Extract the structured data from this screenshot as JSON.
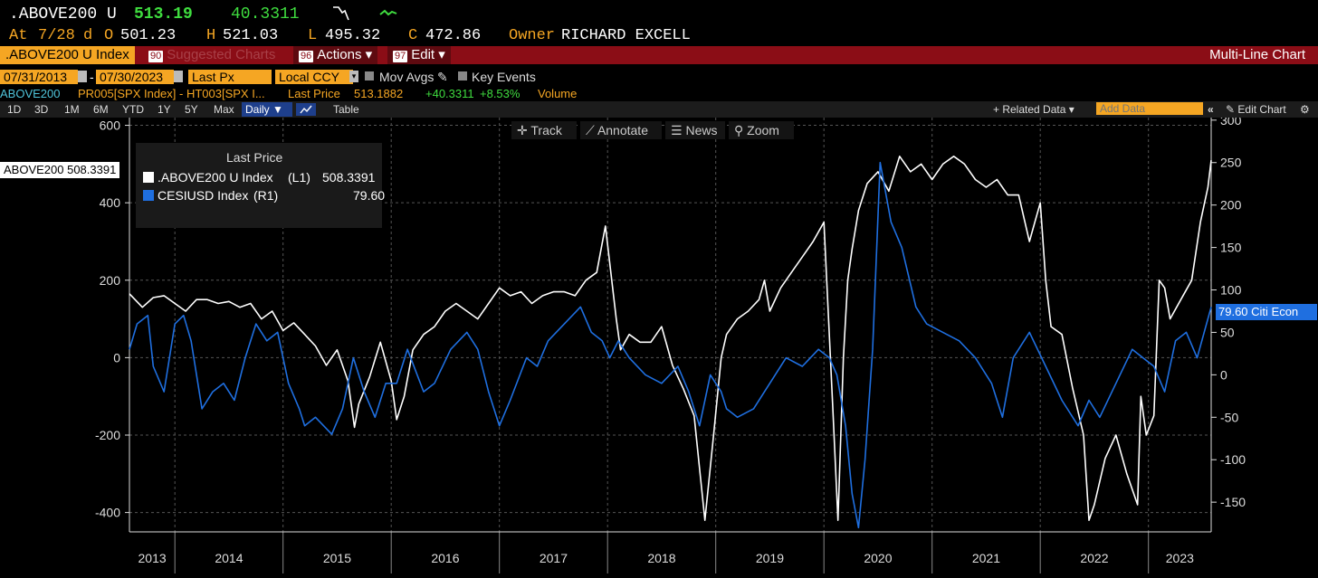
{
  "header": {
    "ticker": ".ABOVE200 U",
    "last": "513.19",
    "change": "40.3311",
    "at_label": "At",
    "date": "7/28",
    "d_label": "d",
    "o_label": "O",
    "open": "501.23",
    "h_label": "H",
    "high": "521.03",
    "l_label": "L",
    "low": "495.32",
    "c_label": "C",
    "close": "472.86",
    "owner_label": "Owner",
    "owner": "RICHARD EXCELL"
  },
  "menu": {
    "index_label": ".ABOVE200 U Index",
    "suggested_num": "90",
    "suggested_label": "Suggested Charts",
    "actions_num": "96",
    "actions_label": "Actions",
    "edit_num": "97",
    "edit_label": "Edit",
    "title": "Multi-Line Chart"
  },
  "controls": {
    "start_date": "07/31/2013",
    "end_date": "07/30/2023",
    "field": "Last Px",
    "currency": "Local CCY",
    "mov_avgs": "Mov Avgs",
    "key_events": "Key Events"
  },
  "info_line": {
    "name": "ABOVE200",
    "studies": "PR005[SPX Index] - HT003[SPX I...",
    "last_price_label": "Last Price",
    "last_price": "513.1882",
    "change": "+40.3311",
    "change_pct": "+8.53%",
    "volume": "Volume"
  },
  "toolbar": {
    "periods": [
      "1D",
      "3D",
      "1M",
      "6M",
      "YTD",
      "1Y",
      "5Y",
      "Max"
    ],
    "frequency": "Daily",
    "table": "Table",
    "related_data": "+ Related Data",
    "add_data_placeholder": "Add Data",
    "edit_chart": "Edit Chart"
  },
  "chart_tools": {
    "track": "Track",
    "annotate": "Annotate",
    "news": "News",
    "zoom": "Zoom"
  },
  "colors": {
    "background": "#000000",
    "series1": "#ffffff",
    "series2": "#1f6fe0",
    "amber": "#f5a623",
    "green": "#3fdc3f",
    "menu_red": "#8b0d16"
  },
  "chart_data": {
    "type": "line",
    "legend_title": "Last Price",
    "left_tag": "ABOVE200 508.3391",
    "right_tag": "79.60 Citi Econ",
    "y_left": {
      "ticks": [
        -400,
        -200,
        0,
        200,
        400,
        600
      ],
      "range": [
        -450,
        620
      ]
    },
    "y_right": {
      "ticks": [
        -150,
        -100,
        -50,
        0,
        50,
        100,
        150,
        200,
        250,
        300
      ],
      "range": [
        -185,
        303
      ]
    },
    "x_ticks": [
      "2013",
      "2014",
      "2015",
      "2016",
      "2017",
      "2018",
      "2019",
      "2020",
      "2021",
      "2022",
      "2023"
    ],
    "x_range": [
      2013.58,
      2023.58
    ],
    "grid": true,
    "series": [
      {
        "name": ".ABOVE200 U Index",
        "axis_label": "(L1)",
        "value_label": "508.3391",
        "axis": "left",
        "x": [
          2013.58,
          2013.7,
          2013.8,
          2013.9,
          2014.0,
          2014.1,
          2014.2,
          2014.3,
          2014.4,
          2014.5,
          2014.6,
          2014.7,
          2014.8,
          2014.9,
          2015.0,
          2015.1,
          2015.2,
          2015.3,
          2015.4,
          2015.5,
          2015.6,
          2015.66,
          2015.7,
          2015.8,
          2015.9,
          2016.0,
          2016.05,
          2016.12,
          2016.2,
          2016.3,
          2016.4,
          2016.5,
          2016.6,
          2016.7,
          2016.8,
          2016.9,
          2017.0,
          2017.1,
          2017.2,
          2017.3,
          2017.4,
          2017.5,
          2017.6,
          2017.7,
          2017.8,
          2017.9,
          2017.98,
          2018.08,
          2018.12,
          2018.2,
          2018.3,
          2018.4,
          2018.5,
          2018.6,
          2018.7,
          2018.8,
          2018.9,
          2018.98,
          2019.05,
          2019.1,
          2019.2,
          2019.3,
          2019.4,
          2019.45,
          2019.5,
          2019.6,
          2019.7,
          2019.8,
          2019.9,
          2020.0,
          2020.08,
          2020.13,
          2020.18,
          2020.22,
          2020.26,
          2020.32,
          2020.4,
          2020.5,
          2020.6,
          2020.7,
          2020.8,
          2020.9,
          2021.0,
          2021.1,
          2021.2,
          2021.3,
          2021.4,
          2021.5,
          2021.6,
          2021.7,
          2021.8,
          2021.9,
          2022.0,
          2022.05,
          2022.1,
          2022.2,
          2022.3,
          2022.4,
          2022.45,
          2022.5,
          2022.6,
          2022.7,
          2022.8,
          2022.9,
          2022.93,
          2022.98,
          2023.05,
          2023.1,
          2023.15,
          2023.2,
          2023.3,
          2023.4,
          2023.48,
          2023.55,
          2023.58
        ],
        "y": [
          165,
          130,
          155,
          160,
          140,
          120,
          150,
          150,
          140,
          145,
          130,
          140,
          100,
          120,
          70,
          90,
          60,
          30,
          -20,
          20,
          -60,
          -180,
          -120,
          -50,
          40,
          -60,
          -160,
          -100,
          20,
          60,
          80,
          120,
          140,
          120,
          100,
          140,
          180,
          160,
          170,
          140,
          160,
          170,
          170,
          160,
          200,
          220,
          340,
          100,
          20,
          60,
          40,
          40,
          80,
          -20,
          -80,
          -150,
          -420,
          -200,
          0,
          60,
          100,
          120,
          150,
          200,
          120,
          180,
          220,
          260,
          300,
          350,
          -120,
          -420,
          0,
          200,
          280,
          380,
          450,
          480,
          430,
          520,
          480,
          500,
          460,
          500,
          520,
          500,
          460,
          440,
          460,
          420,
          420,
          300,
          400,
          200,
          80,
          60,
          -80,
          -200,
          -420,
          -380,
          -260,
          -200,
          -300,
          -380,
          -100,
          -200,
          -150,
          200,
          180,
          100,
          150,
          200,
          350,
          440,
          510
        ]
      },
      {
        "name": "CESIUSD Index",
        "axis_label": "(R1)",
        "value_label": "79.60",
        "axis": "right",
        "x": [
          2013.58,
          2013.65,
          2013.75,
          2013.8,
          2013.9,
          2014.0,
          2014.08,
          2014.15,
          2014.25,
          2014.35,
          2014.45,
          2014.55,
          2014.65,
          2014.75,
          2014.85,
          2014.95,
          2015.05,
          2015.15,
          2015.2,
          2015.3,
          2015.45,
          2015.55,
          2015.65,
          2015.75,
          2015.85,
          2015.95,
          2016.05,
          2016.15,
          2016.3,
          2016.4,
          2016.55,
          2016.7,
          2016.8,
          2016.9,
          2017.0,
          2017.1,
          2017.25,
          2017.35,
          2017.45,
          2017.6,
          2017.75,
          2017.85,
          2017.95,
          2018.02,
          2018.1,
          2018.2,
          2018.35,
          2018.5,
          2018.65,
          2018.75,
          2018.85,
          2018.95,
          2019.05,
          2019.1,
          2019.2,
          2019.35,
          2019.5,
          2019.65,
          2019.8,
          2019.95,
          2020.05,
          2020.12,
          2020.2,
          2020.26,
          2020.32,
          2020.38,
          2020.45,
          2020.52,
          2020.62,
          2020.72,
          2020.85,
          2020.95,
          2021.1,
          2021.25,
          2021.4,
          2021.55,
          2021.65,
          2021.75,
          2021.9,
          2022.05,
          2022.2,
          2022.35,
          2022.45,
          2022.55,
          2022.7,
          2022.85,
          2022.95,
          2023.05,
          2023.15,
          2023.25,
          2023.35,
          2023.45,
          2023.58
        ],
        "y": [
          30,
          60,
          70,
          10,
          -20,
          60,
          70,
          40,
          -40,
          -20,
          -10,
          -30,
          20,
          60,
          40,
          50,
          -10,
          -40,
          -60,
          -50,
          -70,
          -40,
          20,
          -20,
          -50,
          -10,
          -10,
          30,
          -20,
          -10,
          30,
          50,
          30,
          -20,
          -60,
          -30,
          20,
          10,
          40,
          60,
          80,
          50,
          40,
          20,
          40,
          20,
          0,
          -10,
          10,
          -20,
          -60,
          0,
          -20,
          -40,
          -50,
          -40,
          -10,
          20,
          10,
          30,
          20,
          0,
          -60,
          -140,
          -180,
          -100,
          30,
          250,
          180,
          150,
          80,
          60,
          50,
          40,
          20,
          -10,
          -50,
          20,
          50,
          10,
          -30,
          -60,
          -30,
          -50,
          -10,
          30,
          20,
          10,
          -20,
          40,
          50,
          20,
          80
        ]
      }
    ]
  }
}
